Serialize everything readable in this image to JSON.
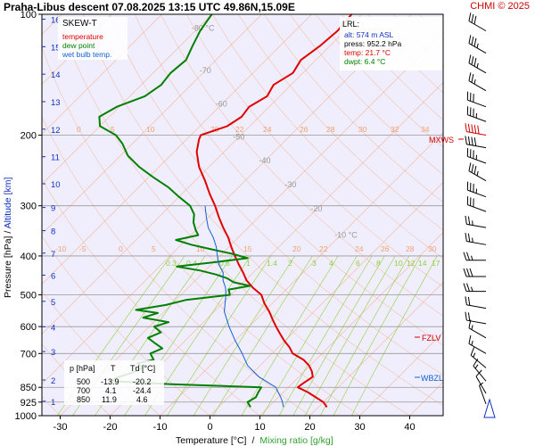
{
  "header": {
    "title": "Praha-Libus   descent   07.08.2025 13:15 UTC   49.86N,15.09E",
    "copyright": "CHMI © 2025"
  },
  "colors": {
    "temperature": "#e00000",
    "dewpoint": "#008000",
    "wetbulb": "#1060d0",
    "isotherm": "#f0a070",
    "mixing_ratio": "#90d040",
    "pressure_line": "#999999",
    "level_marker": "#d00000",
    "wbzl_marker": "#1060d0"
  },
  "legend": {
    "title": "SKEW-T",
    "temperature": "temperature",
    "dewpoint": "dew point",
    "wetbulb": "wet bulb temp."
  },
  "lrl": {
    "title": "LRL:",
    "alt": "alt: 574 m ASL",
    "press": "press: 952.2 hPa",
    "temp": "temp: 21.7 °C",
    "dwpt": "dwpt: 6.4 °C"
  },
  "level_markers": {
    "mxws": "MXWS",
    "fzlv": "FZLV",
    "wbzl": "WBZL"
  },
  "table": {
    "headers": [
      "p [hPa]",
      "T",
      "Td [°C]"
    ],
    "rows": [
      [
        "500",
        "-13.9",
        "-20.2"
      ],
      [
        "700",
        "4.1",
        "-24.4"
      ],
      [
        "850",
        "11.9",
        "4.6"
      ]
    ]
  },
  "chart_data": {
    "type": "skew-t",
    "xlabel": "Temperature [°C]",
    "xlabel_sep": "/",
    "xlabel2": "Mixing ratio [g/kg]",
    "ylabel": "Pressure [hPa]  /  Altitude [km]",
    "x_ticks": [
      "-30",
      "-20",
      "-10",
      "0",
      "10",
      "20",
      "30",
      "40"
    ],
    "x_tick_values": [
      -30,
      -20,
      -10,
      0,
      10,
      20,
      30,
      40
    ],
    "pressure_ticks": [
      "100",
      "200",
      "300",
      "400",
      "500",
      "600",
      "700",
      "850",
      "925",
      "1000"
    ],
    "pressure_tick_values": [
      100,
      200,
      300,
      400,
      500,
      600,
      700,
      850,
      925,
      1000
    ],
    "altitude_ticks": [
      "1",
      "2",
      "3",
      "4",
      "5",
      "6",
      "7",
      "8",
      "9",
      "10",
      "11",
      "12",
      "13",
      "14",
      "15",
      "16"
    ],
    "altitude_tick_values": [
      0.8,
      1.8,
      3.1,
      4.2,
      5.3,
      6.4,
      7.3,
      8.2,
      9.1,
      10.0,
      11.0,
      12.0,
      13.0,
      14.0,
      15.0,
      16.0
    ],
    "altitude_ylim_pressure": [
      1000,
      100
    ],
    "x_range": [
      -40,
      45
    ],
    "isotherm_labels": [
      {
        "t": -80,
        "p": 110,
        "text": "-80 °C"
      },
      {
        "t": -70,
        "p": 140,
        "text": "-70"
      },
      {
        "t": -60,
        "p": 170,
        "text": "-60"
      },
      {
        "t": -50,
        "p": 205,
        "text": "-50"
      },
      {
        "t": -40,
        "p": 235,
        "text": "-40"
      },
      {
        "t": -30,
        "p": 270,
        "text": "-30"
      },
      {
        "t": -20,
        "p": 310,
        "text": "-20"
      },
      {
        "t": -10,
        "p": 360,
        "text": "-10 °C"
      }
    ],
    "theta_labels_upper": [
      "0",
      "5",
      "10",
      "20",
      "22",
      "24",
      "26",
      "28",
      "30",
      "32",
      "34"
    ],
    "theta_labels_lower": [
      "-10",
      "-5",
      "0",
      "5",
      "10",
      "15",
      "20",
      "22",
      "24",
      "26",
      "28",
      "30",
      "32",
      "34"
    ],
    "mixing_ratio_labels": [
      "0.3",
      "0.4",
      "0.6",
      "1",
      "1.4",
      "2",
      "3",
      "4",
      "6",
      "8",
      "10",
      "12",
      "14",
      "17",
      "20",
      "25"
    ],
    "mixing_ratio_values": [
      0.3,
      0.4,
      0.6,
      1,
      1.4,
      2,
      3,
      4,
      6,
      8,
      10,
      12,
      14,
      17,
      20,
      25
    ],
    "series": [
      {
        "name": "temperature",
        "points": [
          [
            952,
            21.7
          ],
          [
            925,
            20.0
          ],
          [
            900,
            17.5
          ],
          [
            875,
            15.0
          ],
          [
            850,
            11.9
          ],
          [
            830,
            12.2
          ],
          [
            800,
            12.8
          ],
          [
            775,
            11.5
          ],
          [
            750,
            9.8
          ],
          [
            725,
            7.5
          ],
          [
            700,
            4.1
          ],
          [
            675,
            2.2
          ],
          [
            650,
            -0.2
          ],
          [
            620,
            -2.8
          ],
          [
            600,
            -4.6
          ],
          [
            575,
            -6.8
          ],
          [
            550,
            -9.0
          ],
          [
            525,
            -11.6
          ],
          [
            500,
            -13.9
          ],
          [
            480,
            -17.0
          ],
          [
            460,
            -19.8
          ],
          [
            440,
            -22.0
          ],
          [
            420,
            -24.5
          ],
          [
            400,
            -27.0
          ],
          [
            380,
            -29.5
          ],
          [
            360,
            -32.0
          ],
          [
            340,
            -35.0
          ],
          [
            320,
            -38.0
          ],
          [
            300,
            -41.0
          ],
          [
            280,
            -44.5
          ],
          [
            260,
            -48.0
          ],
          [
            240,
            -52.0
          ],
          [
            220,
            -55.5
          ],
          [
            205,
            -57.5
          ],
          [
            200,
            -58.0
          ],
          [
            190,
            -54.5
          ],
          [
            180,
            -53.5
          ],
          [
            170,
            -54.0
          ],
          [
            160,
            -52.5
          ],
          [
            150,
            -53.5
          ],
          [
            140,
            -52.0
          ],
          [
            130,
            -53.0
          ],
          [
            120,
            -52.0
          ],
          [
            110,
            -51.5
          ],
          [
            100,
            -52.0
          ]
        ]
      },
      {
        "name": "dew point",
        "points": [
          [
            952,
            6.4
          ],
          [
            925,
            4.8
          ],
          [
            900,
            5.5
          ],
          [
            875,
            5.0
          ],
          [
            850,
            4.6
          ],
          [
            835,
            -14.0
          ],
          [
            820,
            -27.0
          ],
          [
            800,
            -26.0
          ],
          [
            780,
            -24.0
          ],
          [
            760,
            -23.0
          ],
          [
            740,
            -25.0
          ],
          [
            725,
            -22.5
          ],
          [
            700,
            -24.4
          ],
          [
            680,
            -23.0
          ],
          [
            660,
            -25.5
          ],
          [
            640,
            -28.0
          ],
          [
            620,
            -26.5
          ],
          [
            600,
            -29.0
          ],
          [
            585,
            -27.0
          ],
          [
            570,
            -33.0
          ],
          [
            555,
            -31.0
          ],
          [
            545,
            -36.0
          ],
          [
            530,
            -31.0
          ],
          [
            515,
            -28.0
          ],
          [
            500,
            -20.2
          ],
          [
            485,
            -21.5
          ],
          [
            475,
            -18.0
          ],
          [
            465,
            -22.0
          ],
          [
            455,
            -24.0
          ],
          [
            445,
            -27.0
          ],
          [
            435,
            -31.0
          ],
          [
            425,
            -36.5
          ],
          [
            415,
            -30.0
          ],
          [
            405,
            -24.0
          ],
          [
            395,
            -28.0
          ],
          [
            385,
            -33.0
          ],
          [
            375,
            -38.0
          ],
          [
            365,
            -42.0
          ],
          [
            355,
            -38.5
          ],
          [
            345,
            -40.0
          ],
          [
            330,
            -42.0
          ],
          [
            315,
            -43.5
          ],
          [
            300,
            -46.0
          ],
          [
            285,
            -50.0
          ],
          [
            270,
            -54.0
          ],
          [
            255,
            -59.0
          ],
          [
            240,
            -64.0
          ],
          [
            225,
            -68.5
          ],
          [
            210,
            -72.0
          ],
          [
            200,
            -75.0
          ],
          [
            190,
            -80.0
          ],
          [
            180,
            -82.0
          ],
          [
            170,
            -80.5
          ],
          [
            160,
            -77.0
          ],
          [
            150,
            -76.0
          ],
          [
            140,
            -76.5
          ],
          [
            130,
            -76.0
          ],
          [
            120,
            -77.5
          ],
          [
            110,
            -79.0
          ],
          [
            100,
            -80.0
          ]
        ]
      },
      {
        "name": "wet bulb temp.",
        "points": [
          [
            952,
            13.0
          ],
          [
            925,
            11.8
          ],
          [
            900,
            10.5
          ],
          [
            875,
            9.0
          ],
          [
            850,
            7.5
          ],
          [
            800,
            2.0
          ],
          [
            750,
            -2.5
          ],
          [
            700,
            -6.0
          ],
          [
            650,
            -10.0
          ],
          [
            600,
            -14.0
          ],
          [
            550,
            -18.0
          ],
          [
            500,
            -21.0
          ],
          [
            480,
            -22.5
          ],
          [
            460,
            -24.5
          ],
          [
            440,
            -26.0
          ],
          [
            420,
            -28.5
          ],
          [
            400,
            -30.5
          ],
          [
            380,
            -32.5
          ],
          [
            360,
            -35.0
          ],
          [
            340,
            -38.0
          ],
          [
            320,
            -40.5
          ],
          [
            300,
            -43.0
          ]
        ]
      }
    ],
    "levels": [
      {
        "name": "MXWS",
        "p": 200
      },
      {
        "name": "FZLV",
        "p": 640
      },
      {
        "name": "WBZL",
        "p": 810
      }
    ],
    "wind_barbs": [
      {
        "p": 110,
        "dir": 300,
        "kt": 30
      },
      {
        "p": 125,
        "dir": 300,
        "kt": 35
      },
      {
        "p": 140,
        "dir": 300,
        "kt": 35
      },
      {
        "p": 155,
        "dir": 300,
        "kt": 25
      },
      {
        "p": 170,
        "dir": 290,
        "kt": 30
      },
      {
        "p": 185,
        "dir": 290,
        "kt": 35
      },
      {
        "p": 200,
        "dir": 280,
        "kt": 50,
        "highlight": true
      },
      {
        "p": 215,
        "dir": 280,
        "kt": 40
      },
      {
        "p": 235,
        "dir": 290,
        "kt": 35
      },
      {
        "p": 260,
        "dir": 300,
        "kt": 35
      },
      {
        "p": 285,
        "dir": 290,
        "kt": 35
      },
      {
        "p": 310,
        "dir": 290,
        "kt": 30
      },
      {
        "p": 340,
        "dir": 280,
        "kt": 25
      },
      {
        "p": 375,
        "dir": 280,
        "kt": 25
      },
      {
        "p": 410,
        "dir": 270,
        "kt": 25
      },
      {
        "p": 450,
        "dir": 270,
        "kt": 30
      },
      {
        "p": 490,
        "dir": 270,
        "kt": 25
      },
      {
        "p": 540,
        "dir": 280,
        "kt": 20
      },
      {
        "p": 590,
        "dir": 280,
        "kt": 20
      },
      {
        "p": 640,
        "dir": 300,
        "kt": 15
      },
      {
        "p": 700,
        "dir": 300,
        "kt": 15
      },
      {
        "p": 760,
        "dir": 310,
        "kt": 15
      },
      {
        "p": 820,
        "dir": 320,
        "kt": 15
      },
      {
        "p": 880,
        "dir": 330,
        "kt": 10
      },
      {
        "p": 935,
        "dir": 340,
        "kt": 5
      }
    ]
  }
}
